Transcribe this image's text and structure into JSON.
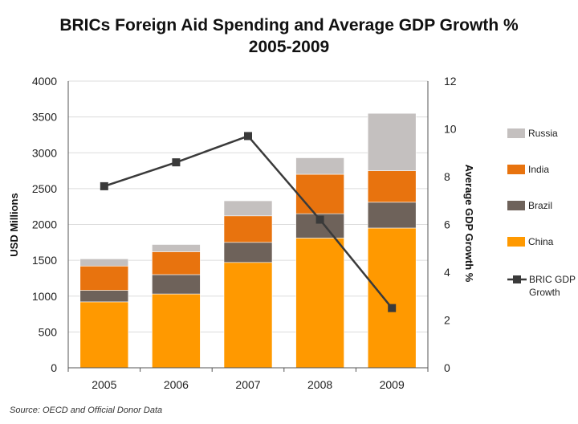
{
  "chart_data": {
    "type": "bar",
    "stacked": true,
    "title": [
      "BRICs Foreign Aid Spending and Average GDP Growth %",
      "2005-2009"
    ],
    "categories": [
      "2005",
      "2006",
      "2007",
      "2008",
      "2009"
    ],
    "ylabel": "USD Millions",
    "y2label": "Average GDP Growth %",
    "ylim": [
      0,
      4000
    ],
    "y2lim": [
      0,
      12
    ],
    "yticks": [
      "0",
      "500",
      "1000",
      "1500",
      "2000",
      "2500",
      "3000",
      "3500",
      "4000"
    ],
    "y2ticks": [
      "0",
      "2",
      "4",
      "6",
      "8",
      "10",
      "12"
    ],
    "grid": true,
    "legend_position": "right",
    "series": [
      {
        "name": "China",
        "type": "bar",
        "color": "#FF9900",
        "values": [
          920,
          1030,
          1470,
          1810,
          1950
        ]
      },
      {
        "name": "Brazil",
        "type": "bar",
        "color": "#6E625A",
        "values": [
          160,
          270,
          280,
          340,
          360
        ]
      },
      {
        "name": "India",
        "type": "bar",
        "color": "#E8730E",
        "values": [
          340,
          320,
          370,
          550,
          440
        ]
      },
      {
        "name": "Russia",
        "type": "bar",
        "color": "#C4C0BF",
        "values": [
          100,
          100,
          210,
          230,
          800
        ]
      },
      {
        "name": "BRIC GDP Growth",
        "type": "line",
        "axis": "right",
        "color": "#3A3A3A",
        "values": [
          7.6,
          8.6,
          9.7,
          6.2,
          2.5
        ]
      }
    ],
    "legend_order": [
      "Russia",
      "India",
      "Brazil",
      "China",
      "BRIC GDP Growth"
    ],
    "source": "Source: OECD and Official Donor Data"
  }
}
